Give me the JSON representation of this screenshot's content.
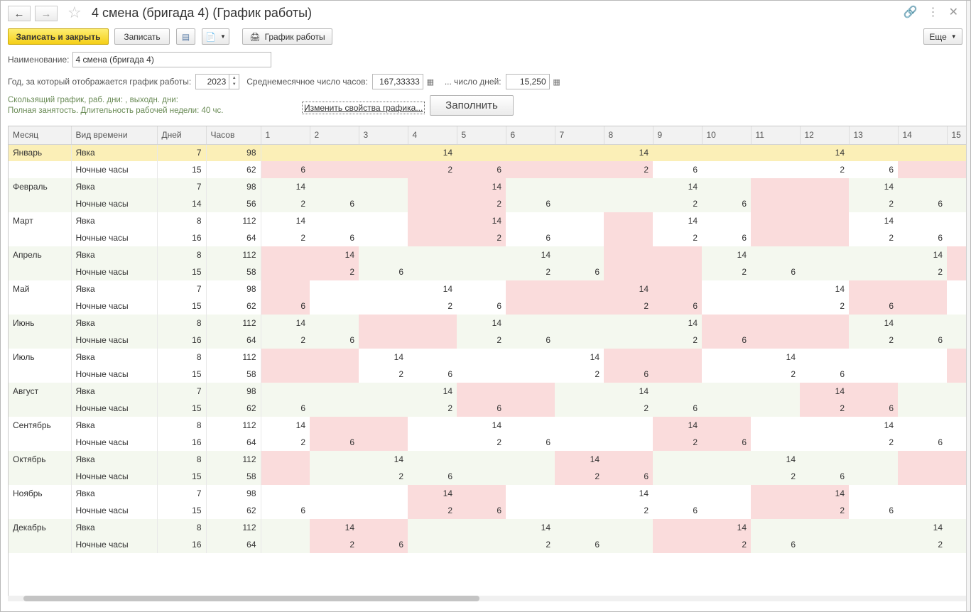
{
  "window": {
    "title": "4 смена (бригада 4) (График работы)"
  },
  "toolbar": {
    "save_close": "Записать и закрыть",
    "save": "Записать",
    "schedule": "График работы",
    "more": "Еще"
  },
  "form": {
    "name_label": "Наименование:",
    "name_value": "4 смена (бригада 4)",
    "year_label": "Год, за который отображается график работы:",
    "year_value": "2023",
    "avg_hours_label": "Среднемесячное число часов:",
    "avg_hours_value": "167,33333",
    "days_label": "... число дней:",
    "days_value": "15,250",
    "info_line1": "Скользящий график, раб. дни: , выходн. дни:",
    "info_line2": "Полная занятость. Длительность рабочей недели: 40 чс.",
    "change_link": "Изменить свойства графика...",
    "fill_button": "Заполнить"
  },
  "grid": {
    "headers": [
      "Месяц",
      "Вид времени",
      "Дней",
      "Часов"
    ],
    "day_headers": [
      "1",
      "2",
      "3",
      "4",
      "5",
      "6",
      "7",
      "8",
      "9",
      "10",
      "11",
      "12",
      "13",
      "14",
      "15"
    ],
    "rows": [
      {
        "month": "Январь",
        "type": "Явка",
        "days": "7",
        "hours": "98",
        "cells": [
          "",
          "",
          "",
          "14",
          "",
          "",
          "",
          "14",
          "",
          "",
          "",
          "14",
          "",
          "",
          ""
        ],
        "hol": [
          0,
          0,
          0,
          0,
          0,
          0,
          0,
          0,
          0,
          0,
          0,
          0,
          0,
          0,
          0
        ]
      },
      {
        "month": "",
        "type": "Ночные часы",
        "days": "15",
        "hours": "62",
        "cells": [
          "6",
          "",
          "",
          "2",
          "6",
          "",
          "",
          "2",
          "6",
          "",
          "",
          "2",
          "6",
          "",
          ""
        ],
        "hol": [
          1,
          1,
          1,
          1,
          1,
          1,
          1,
          1,
          0,
          0,
          0,
          0,
          0,
          1,
          1
        ]
      },
      {
        "month": "Февраль",
        "type": "Явка",
        "days": "7",
        "hours": "98",
        "cells": [
          "14",
          "",
          "",
          "",
          "14",
          "",
          "",
          "",
          "14",
          "",
          "",
          "",
          "14",
          "",
          ""
        ],
        "hol": [
          0,
          0,
          0,
          1,
          1,
          0,
          0,
          0,
          0,
          0,
          1,
          1,
          0,
          0,
          0
        ]
      },
      {
        "month": "",
        "type": "Ночные часы",
        "days": "14",
        "hours": "56",
        "cells": [
          "2",
          "6",
          "",
          "",
          "2",
          "6",
          "",
          "",
          "2",
          "6",
          "",
          "",
          "2",
          "6",
          ""
        ],
        "hol": [
          0,
          0,
          0,
          1,
          1,
          0,
          0,
          0,
          0,
          0,
          1,
          1,
          0,
          0,
          0
        ]
      },
      {
        "month": "Март",
        "type": "Явка",
        "days": "8",
        "hours": "112",
        "cells": [
          "14",
          "",
          "",
          "",
          "14",
          "",
          "",
          "",
          "14",
          "",
          "",
          "",
          "14",
          "",
          ""
        ],
        "hol": [
          0,
          0,
          0,
          1,
          1,
          0,
          0,
          1,
          0,
          0,
          1,
          1,
          0,
          0,
          0
        ]
      },
      {
        "month": "",
        "type": "Ночные часы",
        "days": "16",
        "hours": "64",
        "cells": [
          "2",
          "6",
          "",
          "",
          "2",
          "6",
          "",
          "",
          "2",
          "6",
          "",
          "",
          "2",
          "6",
          ""
        ],
        "hol": [
          0,
          0,
          0,
          1,
          1,
          0,
          0,
          1,
          0,
          0,
          1,
          1,
          0,
          0,
          0
        ]
      },
      {
        "month": "Апрель",
        "type": "Явка",
        "days": "8",
        "hours": "112",
        "cells": [
          "",
          "14",
          "",
          "",
          "",
          "14",
          "",
          "",
          "",
          "14",
          "",
          "",
          "",
          "14",
          ""
        ],
        "hol": [
          1,
          1,
          0,
          0,
          0,
          0,
          0,
          1,
          1,
          0,
          0,
          0,
          0,
          0,
          1
        ]
      },
      {
        "month": "",
        "type": "Ночные часы",
        "days": "15",
        "hours": "58",
        "cells": [
          "",
          "2",
          "6",
          "",
          "",
          "2",
          "6",
          "",
          "",
          "2",
          "6",
          "",
          "",
          "2",
          ""
        ],
        "hol": [
          1,
          1,
          0,
          0,
          0,
          0,
          0,
          1,
          1,
          0,
          0,
          0,
          0,
          0,
          1
        ]
      },
      {
        "month": "Май",
        "type": "Явка",
        "days": "7",
        "hours": "98",
        "cells": [
          "",
          "",
          "",
          "14",
          "",
          "",
          "",
          "14",
          "",
          "",
          "",
          "14",
          "",
          "",
          ""
        ],
        "hol": [
          1,
          0,
          0,
          0,
          0,
          1,
          1,
          1,
          1,
          0,
          0,
          0,
          1,
          1,
          0
        ]
      },
      {
        "month": "",
        "type": "Ночные часы",
        "days": "15",
        "hours": "62",
        "cells": [
          "6",
          "",
          "",
          "2",
          "6",
          "",
          "",
          "2",
          "6",
          "",
          "",
          "2",
          "6",
          "",
          ""
        ],
        "hol": [
          1,
          0,
          0,
          0,
          0,
          1,
          1,
          1,
          1,
          0,
          0,
          0,
          1,
          1,
          0
        ]
      },
      {
        "month": "Июнь",
        "type": "Явка",
        "days": "8",
        "hours": "112",
        "cells": [
          "14",
          "",
          "",
          "",
          "14",
          "",
          "",
          "",
          "14",
          "",
          "",
          "",
          "14",
          "",
          ""
        ],
        "hol": [
          0,
          0,
          1,
          1,
          0,
          0,
          0,
          0,
          0,
          1,
          1,
          1,
          0,
          0,
          0
        ]
      },
      {
        "month": "",
        "type": "Ночные часы",
        "days": "16",
        "hours": "64",
        "cells": [
          "2",
          "6",
          "",
          "",
          "2",
          "6",
          "",
          "",
          "2",
          "6",
          "",
          "",
          "2",
          "6",
          ""
        ],
        "hol": [
          0,
          0,
          1,
          1,
          0,
          0,
          0,
          0,
          0,
          1,
          1,
          1,
          0,
          0,
          0
        ]
      },
      {
        "month": "Июль",
        "type": "Явка",
        "days": "8",
        "hours": "112",
        "cells": [
          "",
          "",
          "14",
          "",
          "",
          "",
          "14",
          "",
          "",
          "",
          "14",
          "",
          "",
          "",
          ""
        ],
        "hol": [
          1,
          1,
          0,
          0,
          0,
          0,
          0,
          1,
          1,
          0,
          0,
          0,
          0,
          0,
          1
        ]
      },
      {
        "month": "",
        "type": "Ночные часы",
        "days": "15",
        "hours": "58",
        "cells": [
          "",
          "",
          "2",
          "6",
          "",
          "",
          "2",
          "6",
          "",
          "",
          "2",
          "6",
          "",
          "",
          ""
        ],
        "hol": [
          1,
          1,
          0,
          0,
          0,
          0,
          0,
          1,
          1,
          0,
          0,
          0,
          0,
          0,
          1
        ]
      },
      {
        "month": "Август",
        "type": "Явка",
        "days": "7",
        "hours": "98",
        "cells": [
          "",
          "",
          "",
          "14",
          "",
          "",
          "",
          "14",
          "",
          "",
          "",
          "14",
          "",
          "",
          ""
        ],
        "hol": [
          0,
          0,
          0,
          0,
          1,
          1,
          0,
          0,
          0,
          0,
          0,
          1,
          1,
          0,
          0
        ]
      },
      {
        "month": "",
        "type": "Ночные часы",
        "days": "15",
        "hours": "62",
        "cells": [
          "6",
          "",
          "",
          "2",
          "6",
          "",
          "",
          "2",
          "6",
          "",
          "",
          "2",
          "6",
          "",
          ""
        ],
        "hol": [
          0,
          0,
          0,
          0,
          1,
          1,
          0,
          0,
          0,
          0,
          0,
          1,
          1,
          0,
          0
        ]
      },
      {
        "month": "Сентябрь",
        "type": "Явка",
        "days": "8",
        "hours": "112",
        "cells": [
          "14",
          "",
          "",
          "",
          "14",
          "",
          "",
          "",
          "14",
          "",
          "",
          "",
          "14",
          "",
          ""
        ],
        "hol": [
          0,
          1,
          1,
          0,
          0,
          0,
          0,
          0,
          1,
          1,
          0,
          0,
          0,
          0,
          0
        ]
      },
      {
        "month": "",
        "type": "Ночные часы",
        "days": "16",
        "hours": "64",
        "cells": [
          "2",
          "6",
          "",
          "",
          "2",
          "6",
          "",
          "",
          "2",
          "6",
          "",
          "",
          "2",
          "6",
          ""
        ],
        "hol": [
          0,
          1,
          1,
          0,
          0,
          0,
          0,
          0,
          1,
          1,
          0,
          0,
          0,
          0,
          0
        ]
      },
      {
        "month": "Октябрь",
        "type": "Явка",
        "days": "8",
        "hours": "112",
        "cells": [
          "",
          "",
          "14",
          "",
          "",
          "",
          "14",
          "",
          "",
          "",
          "14",
          "",
          "",
          "",
          ""
        ],
        "hol": [
          1,
          0,
          0,
          0,
          0,
          0,
          1,
          1,
          0,
          0,
          0,
          0,
          0,
          1,
          1
        ]
      },
      {
        "month": "",
        "type": "Ночные часы",
        "days": "15",
        "hours": "58",
        "cells": [
          "",
          "",
          "2",
          "6",
          "",
          "",
          "2",
          "6",
          "",
          "",
          "2",
          "6",
          "",
          "",
          ""
        ],
        "hol": [
          1,
          0,
          0,
          0,
          0,
          0,
          1,
          1,
          0,
          0,
          0,
          0,
          0,
          1,
          1
        ]
      },
      {
        "month": "Ноябрь",
        "type": "Явка",
        "days": "7",
        "hours": "98",
        "cells": [
          "",
          "",
          "",
          "14",
          "",
          "",
          "",
          "14",
          "",
          "",
          "",
          "14",
          "",
          "",
          ""
        ],
        "hol": [
          0,
          0,
          0,
          1,
          1,
          0,
          0,
          0,
          0,
          0,
          1,
          1,
          0,
          0,
          0
        ]
      },
      {
        "month": "",
        "type": "Ночные часы",
        "days": "15",
        "hours": "62",
        "cells": [
          "6",
          "",
          "",
          "2",
          "6",
          "",
          "",
          "2",
          "6",
          "",
          "",
          "2",
          "6",
          "",
          ""
        ],
        "hol": [
          0,
          0,
          0,
          1,
          1,
          0,
          0,
          0,
          0,
          0,
          1,
          1,
          0,
          0,
          0
        ]
      },
      {
        "month": "Декабрь",
        "type": "Явка",
        "days": "8",
        "hours": "112",
        "cells": [
          "",
          "14",
          "",
          "",
          "",
          "14",
          "",
          "",
          "",
          "14",
          "",
          "",
          "",
          "14",
          ""
        ],
        "hol": [
          0,
          1,
          1,
          0,
          0,
          0,
          0,
          0,
          1,
          1,
          0,
          0,
          0,
          0,
          0
        ]
      },
      {
        "month": "",
        "type": "Ночные часы",
        "days": "16",
        "hours": "64",
        "cells": [
          "",
          "2",
          "6",
          "",
          "",
          "2",
          "6",
          "",
          "",
          "2",
          "6",
          "",
          "",
          "2",
          ""
        ],
        "hol": [
          0,
          1,
          1,
          0,
          0,
          0,
          0,
          0,
          1,
          1,
          0,
          0,
          0,
          0,
          0
        ]
      }
    ]
  },
  "icons": {
    "back": "arrow-left-icon",
    "forward": "arrow-right-icon",
    "favorite": "star-icon",
    "link": "link-icon",
    "more_menu": "kebab-icon",
    "close": "close-icon"
  },
  "colors": {
    "primary_button": "#f5cf17",
    "holiday_cell": "#fadcdc",
    "selected_row": "#fbefb7",
    "even_row": "#f4f8ef",
    "info_text": "#6a8b56"
  }
}
